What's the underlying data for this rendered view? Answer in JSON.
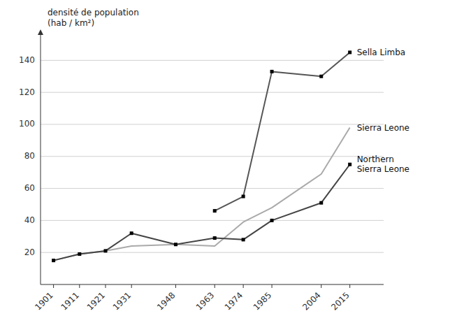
{
  "chart_data": {
    "type": "line",
    "x": [
      1901,
      1911,
      1921,
      1931,
      1948,
      1963,
      1974,
      1985,
      2004,
      2015
    ],
    "y_label": [
      "densité de population",
      "(hab / km²)"
    ],
    "series": [
      {
        "name": "Sierra Leone",
        "color": "#aaaaaa",
        "marker": "none",
        "values": [
          15,
          19,
          21,
          24,
          25,
          24,
          39,
          48,
          69,
          98
        ]
      },
      {
        "name": "Northern\nSierra Leone",
        "color": "#444444",
        "marker": "square",
        "values": [
          15,
          19,
          21,
          32,
          25,
          29,
          28,
          40,
          51,
          75
        ]
      },
      {
        "name": "Sella Limba",
        "color": "#555555",
        "marker": "square",
        "values": [
          null,
          null,
          null,
          null,
          null,
          46,
          55,
          133,
          130,
          145
        ]
      }
    ],
    "xlim": [
      1896,
      2028
    ],
    "xticks": [
      1901,
      1911,
      1921,
      1931,
      1948,
      1963,
      1974,
      1985,
      2004,
      2015
    ],
    "ylim": [
      0,
      155
    ],
    "yticks": [
      20,
      40,
      60,
      80,
      100,
      120,
      140
    ],
    "grid": true
  }
}
